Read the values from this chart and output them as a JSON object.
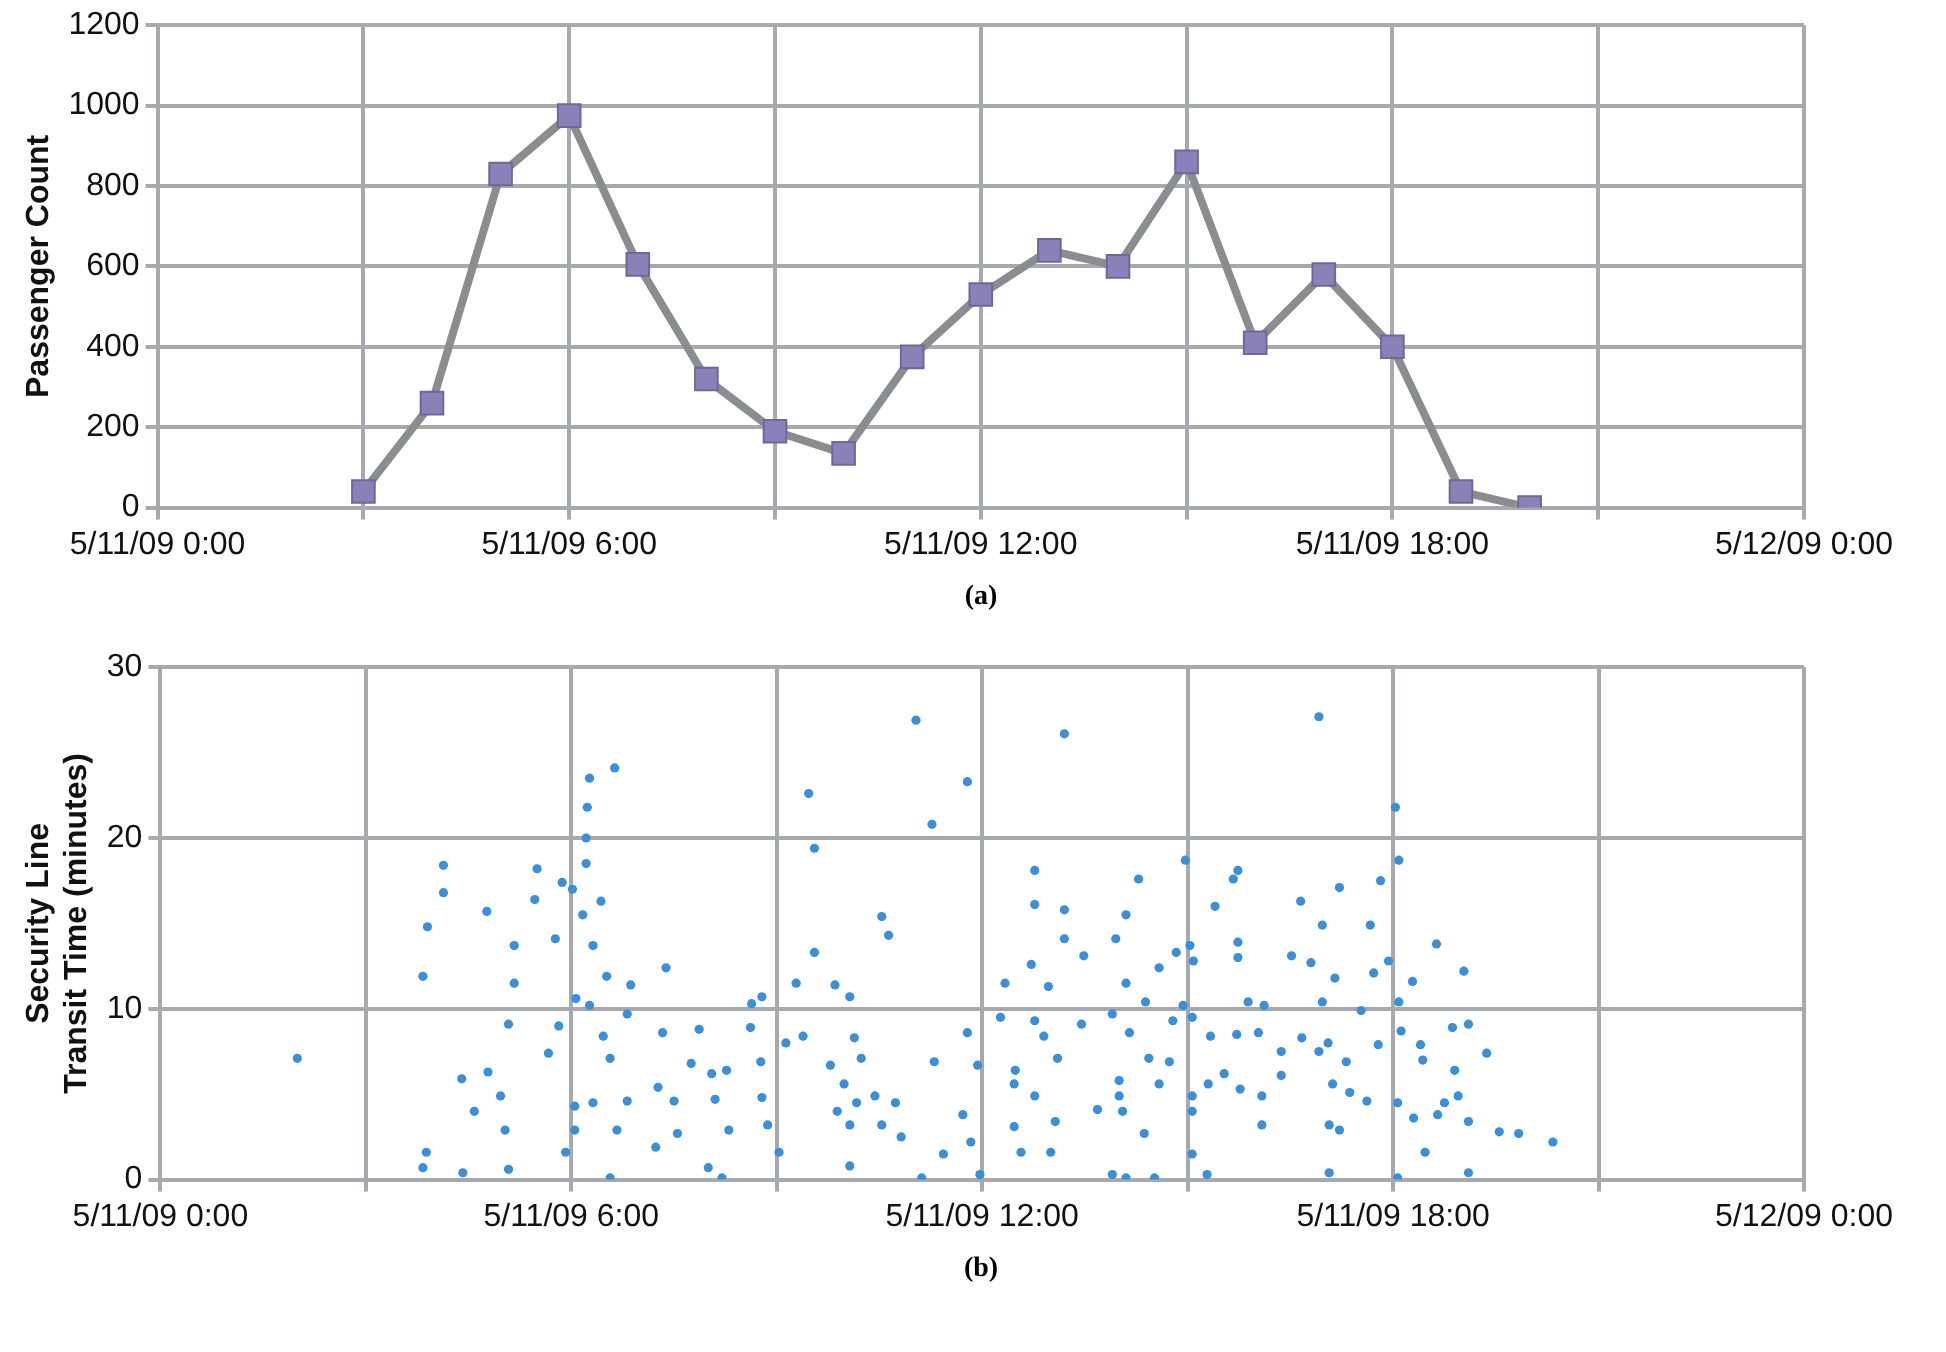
{
  "chart_data": [
    {
      "type": "line",
      "ylabel": "Passenger Count",
      "annotations": [
        "(a)"
      ],
      "x": [
        "--05-11T03:00",
        "--05-11T04:00",
        "--05-11T05:00",
        "--05-11T06:00",
        "--05-11T07:00",
        "--05-11T08:00",
        "--05-11T09:00",
        "--05-11T10:00",
        "--05-11T11:00",
        "--05-11T12:00",
        "--05-11T13:00",
        "--05-11T14:00",
        "--05-11T15:00",
        "--05-11T16:00",
        "--05-11T17:00",
        "--05-11T18:00",
        "--05-11T19:00",
        "--05-11T20:00"
      ],
      "series": [
        {
          "color": "#8c80b8",
          "values": [
            40,
            260,
            830,
            975,
            605,
            320,
            190,
            135,
            375,
            530,
            640,
            600,
            860,
            410,
            580,
            400,
            40,
            0
          ]
        }
      ],
      "xlim": [
        "--05-11T00:00",
        "--05-12T00:00"
      ],
      "xticks": [
        {
          "value": "--05-11T00:00",
          "label": "5/11/09 0:00"
        },
        {
          "value": "--05-11T03:00",
          "label": null
        },
        {
          "value": "--05-11T06:00",
          "label": "5/11/09 6:00"
        },
        {
          "value": "--05-11T09:00",
          "label": null
        },
        {
          "value": "--05-11T12:00",
          "label": "5/11/09 12:00"
        },
        {
          "value": "--05-11T15:00",
          "label": null
        },
        {
          "value": "--05-11T18:00",
          "label": "5/11/09 18:00"
        },
        {
          "value": "--05-11T21:00",
          "label": null
        },
        {
          "value": "--05-12T00:00",
          "label": "5/12/09 0:00"
        }
      ],
      "ylim": [
        0,
        1200
      ],
      "yticks": [
        0,
        200,
        400,
        600,
        800,
        1000,
        1200
      ],
      "grid": true,
      "marker": "square",
      "line_style": "solid"
    },
    {
      "type": "scatter",
      "ylabel": "Security Line Transit Time (minutes)",
      "annotations": [
        "(b)"
      ],
      "x": [
        "--05-11T02:00",
        "--05-11T04:08",
        "--05-11T04:08",
        "--05-11T03:54",
        "--05-11T03:50",
        "--05-11T03:53",
        "--05-11T03:50",
        "--05-11T04:24",
        "--05-11T04:35",
        "--05-11T04:46",
        "--05-11T04:25",
        "--05-11T05:30",
        "--05-11T05:28",
        "--05-11T05:10",
        "--05-11T05:10",
        "--05-11T05:05",
        "--05-11T04:47",
        "--05-11T04:58",
        "--05-11T05:02",
        "--05-11T05:05",
        "--05-11T05:40",
        "--05-11T05:49",
        "--05-11T05:46",
        "--05-11T05:52",
        "--05-11T06:16",
        "--05-11T06:38",
        "--05-11T06:14",
        "--05-11T06:13",
        "--05-11T06:13",
        "--05-11T06:01",
        "--05-11T06:26",
        "--05-11T06:10",
        "--05-11T06:19",
        "--05-11T06:31",
        "--05-11T06:04",
        "--05-11T06:16",
        "--05-11T06:28",
        "--05-11T06:34",
        "--05-11T06:19",
        "--05-11T06:03",
        "--05-11T06:03",
        "--05-11T05:55",
        "--05-11T06:34",
        "--05-11T06:40",
        "--05-11T06:52",
        "--05-11T06:49",
        "--05-11T06:49",
        "--05-11T07:23",
        "--05-11T07:20",
        "--05-11T07:16",
        "--05-11T07:14",
        "--05-11T07:33",
        "--05-11T07:52",
        "--05-11T07:45",
        "--05-11T07:30",
        "--05-11T08:03",
        "--05-11T08:16",
        "--05-11T08:06",
        "--05-11T08:18",
        "--05-11T08:00",
        "--05-11T08:12",
        "--05-11T08:38",
        "--05-11T08:47",
        "--05-11T08:37",
        "--05-11T08:46",
        "--05-11T08:47",
        "--05-11T08:52",
        "--05-11T09:02",
        "--05-11T09:17",
        "--05-11T09:23",
        "--05-11T09:08",
        "--05-11T09:28",
        "--05-11T09:33",
        "--05-11T09:33",
        "--05-11T09:51",
        "--05-11T10:04",
        "--05-11T10:08",
        "--05-11T09:47",
        "--05-11T09:59",
        "--05-11T09:53",
        "--05-11T10:04",
        "--05-11T10:04",
        "--05-11T10:14",
        "--05-11T10:10",
        "--05-11T10:32",
        "--05-11T10:38",
        "--05-11T11:02",
        "--05-11T10:26",
        "--05-11T10:44",
        "--05-11T10:49",
        "--05-11T10:32",
        "--05-11T11:18",
        "--05-11T11:16",
        "--05-11T11:47",
        "--05-11T11:07",
        "--05-11T11:26",
        "--05-11T11:47",
        "--05-11T11:56",
        "--05-11T11:43",
        "--05-11T11:50",
        "--05-11T11:58",
        "--05-11T12:16",
        "--05-11T12:20",
        "--05-11T12:28",
        "--05-11T12:29",
        "--05-11T12:46",
        "--05-11T12:46",
        "--05-11T12:43",
        "--05-11T12:46",
        "--05-11T12:54",
        "--05-11T13:06",
        "--05-11T12:46",
        "--05-11T12:34",
        "--05-11T12:28",
        "--05-11T13:00",
        "--05-11T13:04",
        "--05-11T13:12",
        "--05-11T13:12",
        "--05-11T13:12",
        "--05-11T12:58",
        "--05-11T13:29",
        "--05-11T13:27",
        "--05-11T13:41",
        "--05-11T13:54",
        "--05-11T13:57",
        "--05-11T14:06",
        "--05-11T13:54",
        "--05-11T14:06",
        "--05-11T14:00",
        "--05-11T14:03",
        "--05-11T14:00",
        "--05-11T14:06",
        "--05-11T14:09",
        "--05-11T14:17",
        "--05-11T14:22",
        "--05-11T14:26",
        "--05-11T14:23",
        "--05-11T14:35",
        "--05-11T14:31",
        "--05-11T14:44",
        "--05-11T14:35",
        "--05-11T14:47",
        "--05-11T14:50",
        "--05-11T14:58",
        "--05-11T15:02",
        "--05-11T15:05",
        "--05-11T14:56",
        "--05-11T15:04",
        "--05-11T15:04",
        "--05-11T15:04",
        "--05-11T15:04",
        "--05-11T15:17",
        "--05-11T15:20",
        "--05-11T15:18",
        "--05-11T15:24",
        "--05-11T15:32",
        "--05-11T15:40",
        "--05-11T15:44",
        "--05-11T15:44",
        "--05-11T15:44",
        "--05-11T15:43",
        "--05-11T15:53",
        "--05-11T15:46",
        "--05-11T16:05",
        "--05-11T16:05",
        "--05-11T16:02",
        "--05-11T16:07",
        "--05-11T16:22",
        "--05-11T16:22",
        "--05-11T16:31",
        "--05-11T16:39",
        "--05-11T16:55",
        "--05-11T16:40",
        "--05-11T16:48",
        "--05-11T16:58",
        "--05-11T16:58",
        "--05-11T16:55",
        "--05-11T17:03",
        "--05-11T17:07",
        "--05-11T17:04",
        "--05-11T17:04",
        "--05-11T17:13",
        "--05-11T17:09",
        "--05-11T17:13",
        "--05-11T17:19",
        "--05-11T17:22",
        "--05-11T17:32",
        "--05-11T17:37",
        "--05-11T17:40",
        "--05-11T17:43",
        "--05-11T17:49",
        "--05-11T17:47",
        "--05-11T17:56",
        "--05-11T18:02",
        "--05-11T18:05",
        "--05-11T18:05",
        "--05-11T18:07",
        "--05-11T18:04",
        "--05-11T18:04",
        "--05-11T18:17",
        "--05-11T18:24",
        "--05-11T18:26",
        "--05-11T18:18",
        "--05-11T18:28",
        "--05-11T18:38",
        "--05-11T18:39",
        "--05-11T18:45",
        "--05-11T18:52",
        "--05-11T18:54",
        "--05-11T18:57",
        "--05-11T19:02",
        "--05-11T19:06",
        "--05-11T19:06",
        "--05-11T19:06",
        "--05-11T19:22",
        "--05-11T19:33",
        "--05-11T19:50",
        "--05-11T20:20"
      ],
      "series": [
        {
          "color": "#3a8fd6",
          "values": [
            7.1,
            18.4,
            16.8,
            14.8,
            11.9,
            1.6,
            0.7,
            5.9,
            4.0,
            15.7,
            0.4,
            18.2,
            16.4,
            13.7,
            11.5,
            9.1,
            6.3,
            4.9,
            2.9,
            0.6,
            7.4,
            9.0,
            14.1,
            17.4,
            23.5,
            24.1,
            21.8,
            20.0,
            18.5,
            17.0,
            16.3,
            15.5,
            13.7,
            11.9,
            10.6,
            10.2,
            8.4,
            7.1,
            4.5,
            4.3,
            2.9,
            1.6,
            0.1,
            2.9,
            11.4,
            9.7,
            4.6,
            12.4,
            8.6,
            5.4,
            1.9,
            2.7,
            8.8,
            6.8,
            4.6,
            6.2,
            6.4,
            4.7,
            2.9,
            0.7,
            0.1,
            10.3,
            10.7,
            8.9,
            6.9,
            4.8,
            3.2,
            1.6,
            11.5,
            8.4,
            8.0,
            22.6,
            19.4,
            13.3,
            11.4,
            10.7,
            8.3,
            6.7,
            5.6,
            4.0,
            3.2,
            0.8,
            7.1,
            4.5,
            15.4,
            14.3,
            26.9,
            4.9,
            4.5,
            2.5,
            3.2,
            6.9,
            20.8,
            23.3,
            0.1,
            1.5,
            8.6,
            6.7,
            3.8,
            2.2,
            0.3,
            9.5,
            11.5,
            5.6,
            6.4,
            18.1,
            16.1,
            12.6,
            9.3,
            8.4,
            7.1,
            4.9,
            1.6,
            3.1,
            1.6,
            3.4,
            26.1,
            15.8,
            14.1,
            11.3,
            13.1,
            9.1,
            4.1,
            9.7,
            14.1,
            15.5,
            0.3,
            0.1,
            4.9,
            4.0,
            5.8,
            11.5,
            8.6,
            17.6,
            2.7,
            7.1,
            10.4,
            12.4,
            0.1,
            6.9,
            5.6,
            9.3,
            13.3,
            18.7,
            13.7,
            12.8,
            10.2,
            9.5,
            4.9,
            4.0,
            1.5,
            0.3,
            8.4,
            5.6,
            16.0,
            6.2,
            17.6,
            18.1,
            13.9,
            13.0,
            8.5,
            10.4,
            5.3,
            4.9,
            3.2,
            8.6,
            10.2,
            7.5,
            6.1,
            13.1,
            16.3,
            27.1,
            8.3,
            12.7,
            14.9,
            10.4,
            7.5,
            8.0,
            5.6,
            3.2,
            0.4,
            17.1,
            11.8,
            2.9,
            6.9,
            5.1,
            9.9,
            4.6,
            14.9,
            12.1,
            17.5,
            7.9,
            12.8,
            21.8,
            18.7,
            10.4,
            8.7,
            4.5,
            0.1,
            11.6,
            7.9,
            7.0,
            3.6,
            1.6,
            13.8,
            3.8,
            4.5,
            8.9,
            6.4,
            4.9,
            12.2,
            9.1,
            3.4,
            0.4,
            7.4,
            2.8,
            2.7,
            2.2
          ]
        }
      ],
      "xlim": [
        "--05-11T00:00",
        "--05-12T00:00"
      ],
      "xticks": [
        {
          "value": "--05-11T00:00",
          "label": "5/11/09 0:00"
        },
        {
          "value": "--05-11T03:00",
          "label": null
        },
        {
          "value": "--05-11T06:00",
          "label": "5/11/09 6:00"
        },
        {
          "value": "--05-11T09:00",
          "label": null
        },
        {
          "value": "--05-11T12:00",
          "label": "5/11/09 12:00"
        },
        {
          "value": "--05-11T15:00",
          "label": null
        },
        {
          "value": "--05-11T18:00",
          "label": "5/11/09 18:00"
        },
        {
          "value": "--05-11T21:00",
          "label": null
        },
        {
          "value": "--05-12T00:00",
          "label": "5/12/09 0:00"
        }
      ],
      "ylim": [
        0,
        30
      ],
      "yticks": [
        0,
        10,
        20,
        30
      ],
      "grid": true,
      "marker": "circle"
    }
  ]
}
